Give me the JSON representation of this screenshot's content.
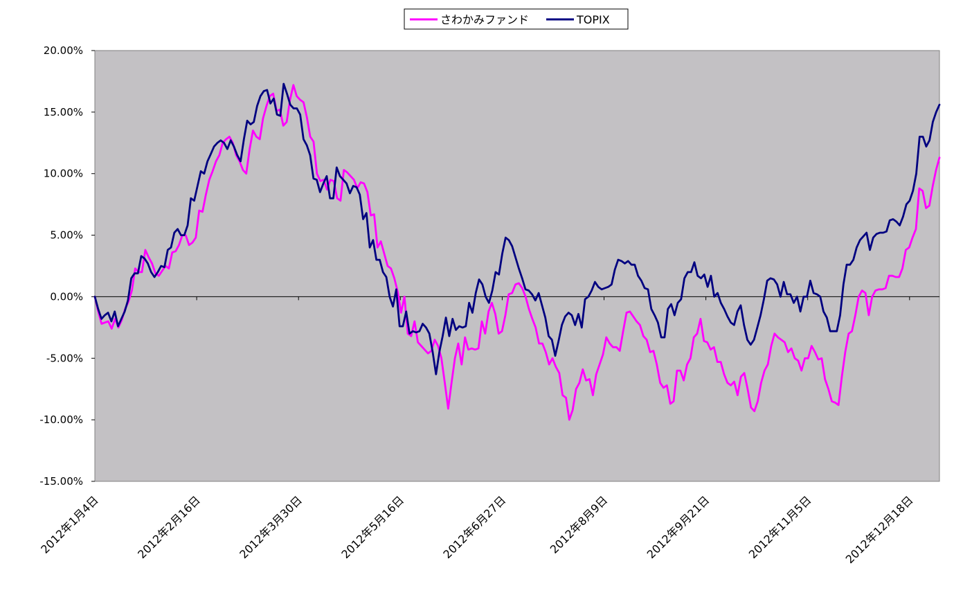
{
  "chart_data": {
    "type": "line",
    "title": "",
    "xlabel": "",
    "ylabel": "",
    "ylim": [
      -15,
      20
    ],
    "y_tick_step": 5,
    "y_unit": "%",
    "grid": false,
    "plot_background": "#c3c1c4",
    "legend_position": "top-center",
    "x_tick_labels": [
      "2012年1月4日",
      "2012年2月16日",
      "2012年3月30日",
      "2012年5月16日",
      "2012年6月27日",
      "2012年8月9日",
      "2012年9月21日",
      "2012年11月5日",
      "2012年12月18日"
    ],
    "y_tick_labels": [
      "20.00%",
      "15.00%",
      "10.00%",
      "5.00%",
      "0.00%",
      "-5.00%",
      "-10.00%",
      "-15.00%"
    ],
    "series": [
      {
        "name": "さわかみファンド",
        "color": "#ff00ff",
        "x_step": 1,
        "values": [
          0.0,
          -1.2,
          -2.2,
          -2.1,
          -2.0,
          -2.6,
          -1.8,
          -2.5,
          -1.9,
          -1.0,
          -0.4,
          0.5,
          2.3,
          2.0,
          2.0,
          3.8,
          3.2,
          2.7,
          1.9,
          1.7,
          2.1,
          2.5,
          2.3,
          3.6,
          3.7,
          4.2,
          5.0,
          5.0,
          4.2,
          4.4,
          4.8,
          7.0,
          6.9,
          8.3,
          9.5,
          10.2,
          11.0,
          11.5,
          12.5,
          12.8,
          13.0,
          12.5,
          11.5,
          11.0,
          10.3,
          10.0,
          12.0,
          13.5,
          13.0,
          12.8,
          14.5,
          15.5,
          16.3,
          16.5,
          15.1,
          15.2,
          13.9,
          14.2,
          16.0,
          17.2,
          16.3,
          16.0,
          15.8,
          14.6,
          13.0,
          12.6,
          10.0,
          9.4,
          9.5,
          8.7,
          9.5,
          9.4,
          8.0,
          7.8,
          10.3,
          10.1,
          9.8,
          9.5,
          8.8,
          9.3,
          9.2,
          8.5,
          6.6,
          6.7,
          4.0,
          4.5,
          3.5,
          2.5,
          2.3,
          1.5,
          0.4,
          -1.3,
          0.0,
          -3.0,
          -3.2,
          -2.0,
          -3.7,
          -4.0,
          -4.3,
          -4.6,
          -4.4,
          -3.5,
          -4.0,
          -5.0,
          -7.0,
          -9.1,
          -7.0,
          -5.0,
          -3.8,
          -5.5,
          -3.3,
          -4.3,
          -4.2,
          -4.3,
          -4.2,
          -2.0,
          -3.0,
          -1.2,
          -0.5,
          -1.4,
          -3.0,
          -2.8,
          -1.5,
          0.2,
          0.3,
          1.0,
          1.1,
          0.7,
          0.0,
          -1.0,
          -1.8,
          -2.5,
          -3.8,
          -3.8,
          -4.5,
          -5.5,
          -5.0,
          -5.7,
          -6.2,
          -8.0,
          -8.2,
          -10.0,
          -9.2,
          -7.5,
          -7.0,
          -5.9,
          -6.8,
          -6.7,
          -8.0,
          -6.3,
          -5.5,
          -4.7,
          -3.3,
          -3.8,
          -4.1,
          -4.1,
          -4.4,
          -2.8,
          -1.3,
          -1.2,
          -1.6,
          -2.0,
          -2.3,
          -3.2,
          -3.5,
          -4.5,
          -4.4,
          -5.5,
          -7.0,
          -7.4,
          -7.2,
          -8.7,
          -8.5,
          -6.0,
          -6.0,
          -6.8,
          -5.5,
          -5.0,
          -3.3,
          -3.0,
          -1.8,
          -3.6,
          -3.7,
          -4.3,
          -4.1,
          -5.3,
          -5.3,
          -6.3,
          -7.0,
          -7.2,
          -6.9,
          -8.0,
          -6.5,
          -6.2,
          -7.5,
          -9.0,
          -9.3,
          -8.5,
          -7.0,
          -6.0,
          -5.5,
          -4.0,
          -3.0,
          -3.3,
          -3.5,
          -3.7,
          -4.5,
          -4.2,
          -5.0,
          -5.2,
          -6.0,
          -5.0,
          -5.0,
          -4.0,
          -4.5,
          -5.1,
          -5.0,
          -6.7,
          -7.5,
          -8.5,
          -8.6,
          -8.8,
          -6.5,
          -4.5,
          -3.0,
          -2.8,
          -1.5,
          0.0,
          0.5,
          0.3,
          -1.5,
          0.0,
          0.5,
          0.6,
          0.6,
          0.7,
          1.7,
          1.7,
          1.6,
          1.6,
          2.3,
          3.8,
          4.0,
          4.8,
          5.5,
          8.8,
          8.6,
          7.2,
          7.4,
          9.0,
          10.3,
          11.3
        ]
      },
      {
        "name": "TOPIX",
        "color": "#000080",
        "x_step": 1,
        "values": [
          0.0,
          -1.0,
          -1.8,
          -1.5,
          -1.3,
          -2.0,
          -1.2,
          -2.4,
          -1.8,
          -1.2,
          -0.3,
          1.5,
          1.9,
          1.9,
          3.3,
          3.1,
          2.7,
          2.0,
          1.6,
          2.0,
          2.5,
          2.4,
          3.8,
          4.0,
          5.2,
          5.5,
          5.0,
          5.0,
          5.8,
          8.0,
          7.8,
          9.0,
          10.2,
          10.0,
          11.0,
          11.6,
          12.2,
          12.5,
          12.7,
          12.5,
          12.0,
          12.7,
          12.2,
          11.5,
          11.0,
          12.8,
          14.3,
          14.0,
          14.2,
          15.5,
          16.3,
          16.7,
          16.8,
          15.7,
          16.1,
          14.8,
          14.7,
          17.3,
          16.5,
          15.6,
          15.3,
          15.3,
          14.8,
          12.8,
          12.3,
          11.5,
          9.6,
          9.5,
          8.5,
          9.2,
          9.8,
          8.0,
          8.0,
          10.5,
          9.8,
          9.5,
          9.2,
          8.4,
          9.0,
          8.9,
          8.3,
          6.3,
          6.8,
          4.0,
          4.6,
          3.0,
          3.0,
          2.0,
          1.6,
          0.0,
          -0.8,
          0.6,
          -2.4,
          -2.4,
          -1.2,
          -3.0,
          -2.8,
          -2.9,
          -2.8,
          -2.2,
          -2.5,
          -3.0,
          -4.5,
          -6.3,
          -4.5,
          -3.2,
          -1.7,
          -3.2,
          -1.8,
          -2.7,
          -2.4,
          -2.5,
          -2.4,
          -0.5,
          -1.3,
          0.3,
          1.4,
          1.0,
          0.0,
          -0.5,
          0.5,
          2.0,
          1.8,
          3.5,
          4.8,
          4.6,
          4.1,
          3.2,
          2.3,
          1.5,
          0.6,
          0.5,
          0.2,
          -0.3,
          0.3,
          -0.7,
          -1.7,
          -3.2,
          -3.5,
          -4.8,
          -3.6,
          -2.3,
          -1.6,
          -1.3,
          -1.5,
          -2.3,
          -1.4,
          -2.5,
          -0.2,
          0.0,
          0.5,
          1.2,
          0.8,
          0.6,
          0.7,
          0.8,
          1.0,
          2.2,
          3.0,
          2.9,
          2.7,
          2.9,
          2.6,
          2.6,
          1.7,
          1.3,
          0.7,
          0.6,
          -1.0,
          -1.5,
          -2.1,
          -3.3,
          -3.3,
          -1.0,
          -0.6,
          -1.5,
          -0.5,
          -0.2,
          1.5,
          2.0,
          2.0,
          2.8,
          1.7,
          1.5,
          1.8,
          0.8,
          1.7,
          0.0,
          0.3,
          -0.5,
          -1.0,
          -1.6,
          -2.1,
          -2.3,
          -1.2,
          -0.7,
          -2.3,
          -3.5,
          -3.9,
          -3.5,
          -2.5,
          -1.5,
          -0.2,
          1.3,
          1.5,
          1.4,
          1.0,
          0.0,
          1.2,
          0.2,
          0.2,
          -0.5,
          0.0,
          -1.2,
          0.0,
          0.0,
          1.3,
          0.3,
          0.2,
          0.0,
          -1.2,
          -1.7,
          -2.8,
          -2.8,
          -2.8,
          -1.5,
          1.0,
          2.6,
          2.6,
          3.0,
          4.0,
          4.6,
          4.9,
          5.2,
          3.8,
          4.8,
          5.1,
          5.2,
          5.2,
          5.3,
          6.2,
          6.3,
          6.1,
          5.8,
          6.5,
          7.5,
          7.8,
          8.6,
          10.0,
          13.0,
          13.0,
          12.2,
          12.7,
          14.2,
          15.0,
          15.6
        ]
      }
    ]
  }
}
